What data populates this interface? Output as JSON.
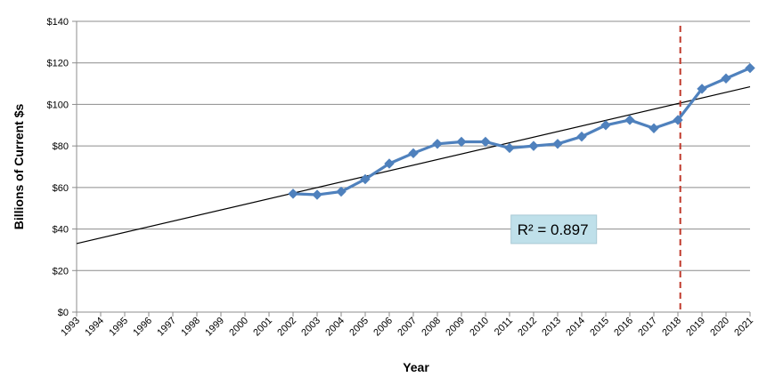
{
  "chart_data": {
    "type": "line",
    "title": "",
    "xlabel": "Year",
    "ylabel": "Billions of Current $s",
    "ylim": [
      0,
      140
    ],
    "xlim": [
      1993,
      2021
    ],
    "y_ticks": [
      0,
      20,
      40,
      60,
      80,
      100,
      120,
      140
    ],
    "y_tick_labels": [
      "$0",
      "$20",
      "$40",
      "$60",
      "$80",
      "$100",
      "$120",
      "$140"
    ],
    "x_ticks": [
      "1993",
      "1994",
      "1995",
      "1996",
      "1997",
      "1998",
      "1999",
      "2000",
      "2001",
      "2002",
      "2003",
      "2004",
      "2005",
      "2006",
      "2007",
      "2008",
      "2009",
      "2010",
      "2011",
      "2012",
      "2013",
      "2014",
      "2015",
      "2016",
      "2017",
      "2018",
      "2019",
      "2020",
      "2021"
    ],
    "grid": "horizontal",
    "series": [
      {
        "x": [
          2002,
          2003,
          2004,
          2005,
          2006,
          2007,
          2008,
          2009,
          2010,
          2011,
          2012,
          2013,
          2014,
          2015,
          2016,
          2017,
          2018,
          2019,
          2020,
          2021
        ],
        "values": [
          57,
          56.5,
          58,
          64,
          71.5,
          76.5,
          81,
          82,
          82,
          79,
          80,
          81,
          84.5,
          90,
          92.5,
          88.5,
          92.5,
          107.5,
          112.5,
          117.5
        ],
        "color": "#4f81bd",
        "marker": "diamond"
      }
    ],
    "trendline": {
      "x": [
        1993,
        2021
      ],
      "y": [
        33,
        108.5
      ],
      "color": "#000000"
    },
    "reference_line": {
      "x": 2018.1,
      "color": "#c0392b",
      "style": "dashed"
    },
    "annotation": {
      "text": "R² = 0.897",
      "x": 2011.1,
      "y": 39,
      "bg_color": "#bfe0ea"
    }
  }
}
